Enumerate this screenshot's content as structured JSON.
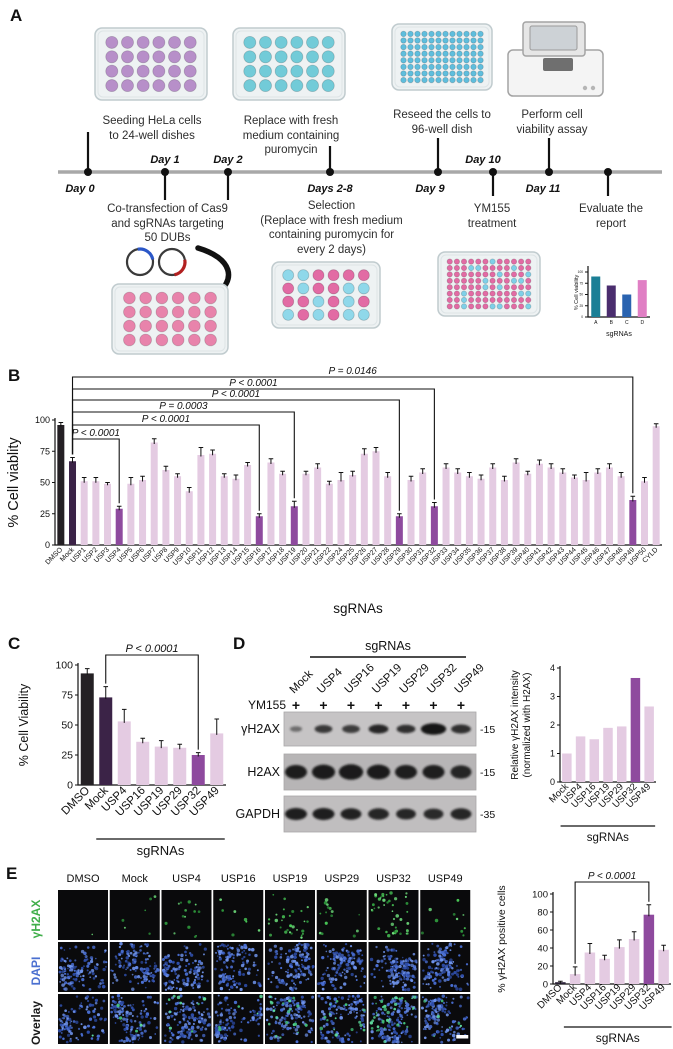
{
  "figure": {
    "panels": {
      "a": "A",
      "b": "B",
      "c": "C",
      "d": "D",
      "e": "E"
    }
  },
  "panelA": {
    "captions_top": [
      "Seeding HeLa cells\nto 24-well dishes",
      "Replace with fresh\nmedium containing\npuromycin",
      "Reseed the cells to\n96-well dish",
      "Perform cell\nviability assay"
    ],
    "timeline_labels": [
      "Day 0",
      "Day 1",
      "Day 2",
      "Days 2-8",
      "Day 9",
      "Day 10",
      "Day 11"
    ],
    "captions_bottom": [
      "Co-transfection of Cas9\nand sgRNAs targeting\n50 DUBs",
      "Selection\n(Replace with fresh medium\ncontaining puromycin for\nevery 2 days)",
      "YM155\ntreatment",
      "Evaluate the\nreport"
    ],
    "plate_colors": {
      "seed_purple": "#b78fc9",
      "puromycin_cyan": "#72cbd8",
      "reseed_cyan": "#5fbedd",
      "transfect_pink": "#e883ab",
      "selection_pink": "#e26ba4",
      "selection_accent": "#8fd8ea",
      "ym155_pink": "#e26ba4",
      "ym155_accent": "#7fd0e8"
    }
  },
  "chart_data": [
    {
      "type": "bar",
      "title": "evaluation mini chart",
      "categories": [
        "A",
        "B",
        "C",
        "D"
      ],
      "values": [
        90,
        70,
        50,
        82
      ],
      "ylabel": "% Cell viability",
      "xlabel": "sgRNAs",
      "ylim": [
        0,
        100
      ],
      "yticks": [
        0,
        25,
        50,
        75,
        100
      ],
      "bar_color": "#e07fc4",
      "special_colors": {
        "A": "#1b7f96",
        "B": "#4a2d6e",
        "C": "#2a63b0",
        "D": "#e07fc4"
      }
    },
    {
      "type": "bar",
      "title": "DUB sgRNA screen cell viability",
      "categories": [
        "DMSO",
        "Mock",
        "USP1",
        "USP2",
        "USP3",
        "USP4",
        "USP5",
        "USP6",
        "USP7",
        "USP8",
        "USP9",
        "USP10",
        "USP11",
        "USP12",
        "USP13",
        "USP14",
        "USP15",
        "USP16",
        "USP17",
        "USP18",
        "USP19",
        "USP20",
        "USP21",
        "USP22",
        "USP24",
        "USP25",
        "USP26",
        "USP27",
        "USP28",
        "USP29",
        "USP30",
        "USP31",
        "USP32",
        "USP33",
        "USP34",
        "USP35",
        "USP36",
        "USP37",
        "USP38",
        "USP39",
        "USP40",
        "USP41",
        "USP42",
        "USP43",
        "USP44",
        "USP45",
        "USP46",
        "USP47",
        "USP48",
        "USP49",
        "USP50",
        "CYLD"
      ],
      "values": [
        96,
        67,
        51,
        51,
        49,
        29,
        49,
        52,
        82,
        60,
        55,
        43,
        72,
        73,
        55,
        53,
        64,
        23,
        66,
        57,
        31,
        57,
        62,
        49,
        52,
        56,
        73,
        75,
        55,
        23,
        52,
        58,
        31,
        62,
        58,
        55,
        53,
        62,
        52,
        66,
        57,
        65,
        62,
        58,
        54,
        52,
        58,
        62,
        55,
        36,
        51,
        95
      ],
      "errors": [
        2,
        3,
        3,
        3,
        1,
        2,
        5,
        3,
        3,
        3,
        2,
        3,
        6,
        3,
        2,
        3,
        2,
        2,
        3,
        2,
        4,
        2,
        3,
        2,
        6,
        3,
        4,
        3,
        3,
        2,
        3,
        3,
        3,
        3,
        3,
        3,
        3,
        3,
        3,
        3,
        2,
        3,
        3,
        3,
        2,
        6,
        3,
        3,
        3,
        3,
        3,
        2
      ],
      "ylabel": "% Cell viablity",
      "xlabel": "sgRNAs",
      "ylim": [
        0,
        100
      ],
      "yticks": [
        0,
        25,
        50,
        75,
        100
      ],
      "bar_color": "#e4cbe2",
      "special_colors": {
        "DMSO": "#242024",
        "Mock": "#3b2347",
        "USP4": "#8e4a9e",
        "USP16": "#8e4a9e",
        "USP19": "#8e4a9e",
        "USP29": "#8e4a9e",
        "USP32": "#8e4a9e",
        "USP49": "#8e4a9e"
      },
      "brackets": [
        {
          "from": "Mock",
          "to": "USP4",
          "label": "P < 0.0001"
        },
        {
          "from": "Mock",
          "to": "USP16",
          "label": "P < 0.0001"
        },
        {
          "from": "Mock",
          "to": "USP19",
          "label": "P = 0.0003"
        },
        {
          "from": "Mock",
          "to": "USP29",
          "label": "P < 0.0001"
        },
        {
          "from": "Mock",
          "to": "USP32",
          "label": "P < 0.0001"
        },
        {
          "from": "Mock",
          "to": "USP49",
          "label": "P = 0.0146"
        }
      ]
    },
    {
      "type": "bar",
      "title": "validation cell viability",
      "categories": [
        "DMSO",
        "Mock",
        "USP4",
        "USP16",
        "USP19",
        "USP29",
        "USP32",
        "USP49"
      ],
      "values": [
        93,
        73,
        53,
        36,
        32,
        31,
        25,
        43
      ],
      "errors": [
        4,
        9,
        10,
        3,
        5,
        3,
        2,
        12
      ],
      "ylabel": "% Cell Viability",
      "ylim": [
        0,
        100
      ],
      "yticks": [
        0,
        25,
        50,
        75,
        100
      ],
      "bar_color": "#e4cbe2",
      "special_colors": {
        "DMSO": "#242024",
        "Mock": "#3b2347",
        "USP32": "#8e4a9e"
      },
      "brackets": [
        {
          "from": "Mock",
          "to": "USP32",
          "label": "P < 0.0001"
        }
      ],
      "group": {
        "from": "USP4",
        "to": "USP49",
        "label": "sgRNAs"
      }
    },
    {
      "type": "bar",
      "title": "relative gamma-H2AX intensity",
      "categories": [
        "Mock",
        "USP4",
        "USP16",
        "USP19",
        "USP29",
        "USP32",
        "USP49"
      ],
      "values": [
        1.0,
        1.6,
        1.5,
        1.9,
        1.95,
        3.65,
        2.65
      ],
      "ylabel": "Relative γH2AX intensity\n(normalized with H2AX)",
      "ylim": [
        0,
        4
      ],
      "yticks": [
        0,
        1,
        2,
        3,
        4
      ],
      "bar_color": "#e4cbe2",
      "special_colors": {
        "USP32": "#8e4a9e"
      },
      "group": {
        "from": "USP4",
        "to": "USP49",
        "label": "sgRNAs"
      }
    },
    {
      "type": "bar",
      "title": "percent gamma-H2AX positive cells",
      "categories": [
        "DMSO",
        "Mock",
        "USP4",
        "USP16",
        "USP19",
        "USP29",
        "USP32",
        "USP49"
      ],
      "values": [
        2,
        11,
        35,
        28,
        41,
        50,
        77,
        38
      ],
      "errors": [
        1,
        8,
        10,
        4,
        8,
        8,
        11,
        5
      ],
      "ylabel": "% γH2AX positive cells",
      "ylim": [
        0,
        100
      ],
      "yticks": [
        0,
        20,
        40,
        60,
        80,
        100
      ],
      "bar_color": "#e4cbe2",
      "special_colors": {
        "DMSO": "#2a2136",
        "USP32": "#8e4a9e"
      },
      "brackets": [
        {
          "from": "Mock",
          "to": "USP32",
          "label": "P < 0.0001"
        }
      ],
      "group": {
        "from": "USP4",
        "to": "USP49",
        "label": "sgRNAs"
      }
    }
  ],
  "panelD_blot": {
    "header": "sgRNAs",
    "lanes": [
      "Mock",
      "USP4",
      "USP16",
      "USP19",
      "USP29",
      "USP32",
      "USP49"
    ],
    "treatment_label": "YM155",
    "treatment_row": [
      "+",
      "+",
      "+",
      "+",
      "+",
      "+",
      "+"
    ],
    "rows": [
      {
        "label": "γH2AX",
        "marker": "-15",
        "intensities": [
          0.5,
          0.8,
          0.78,
          0.9,
          0.85,
          1.0,
          0.85
        ],
        "sizes": [
          0.55,
          0.8,
          0.8,
          0.9,
          0.85,
          1.15,
          0.9
        ]
      },
      {
        "label": "H2AX",
        "marker": "-15",
        "intensities": [
          0.96,
          0.97,
          0.97,
          0.97,
          0.95,
          0.95,
          0.9
        ],
        "sizes": [
          1.0,
          1.05,
          1.1,
          1.05,
          1.0,
          1.0,
          0.95
        ]
      },
      {
        "label": "GAPDH",
        "marker": "-35",
        "intensities": [
          0.95,
          0.95,
          0.93,
          0.9,
          0.9,
          0.88,
          0.9
        ],
        "sizes": [
          1.0,
          1.0,
          0.95,
          0.95,
          0.9,
          0.9,
          0.95
        ]
      }
    ]
  },
  "panelE_micro": {
    "columns": [
      "DMSO",
      "Mock",
      "USP4",
      "USP16",
      "USP19",
      "USP29",
      "USP32",
      "USP49"
    ],
    "rows": [
      {
        "label": "γH2AX",
        "color": "#3fae49"
      },
      {
        "label": "DAPI",
        "color": "#4a6fd0"
      },
      {
        "label": "Overlay",
        "color": "#1a1a1a"
      }
    ],
    "green_counts": [
      1,
      6,
      14,
      8,
      30,
      22,
      55,
      12
    ],
    "dapi_count": 135
  }
}
